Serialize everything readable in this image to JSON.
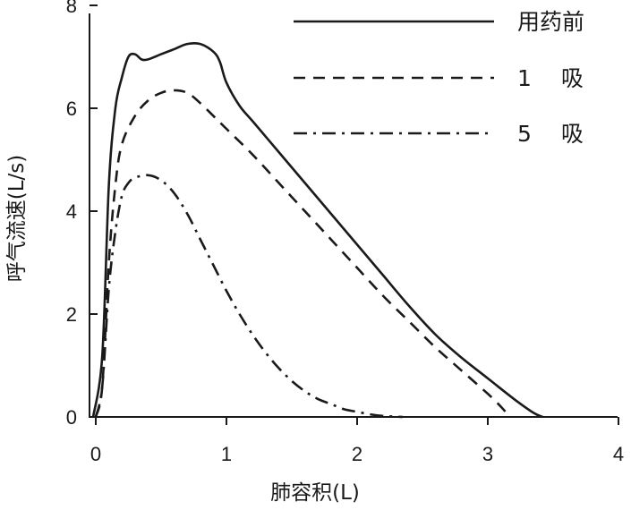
{
  "chart_data": {
    "type": "line",
    "xlabel": "肺容积(L)",
    "ylabel": "呼气流速(L/s)",
    "xlim": [
      0,
      4
    ],
    "ylim": [
      0,
      8
    ],
    "x_ticks": [
      "0",
      "1",
      "2",
      "3",
      "4"
    ],
    "y_ticks": [
      "0",
      "2",
      "4",
      "6",
      "8"
    ],
    "grid": false,
    "legend_position": "top-right",
    "series": [
      {
        "name": "用药前",
        "style": "solid",
        "points": [
          [
            -0.02,
            0
          ],
          [
            0.05,
            1.2
          ],
          [
            0.1,
            4.5
          ],
          [
            0.15,
            6.0
          ],
          [
            0.2,
            6.6
          ],
          [
            0.25,
            7.0
          ],
          [
            0.3,
            7.05
          ],
          [
            0.35,
            6.95
          ],
          [
            0.4,
            6.95
          ],
          [
            0.5,
            7.05
          ],
          [
            0.6,
            7.15
          ],
          [
            0.7,
            7.25
          ],
          [
            0.8,
            7.25
          ],
          [
            0.9,
            7.1
          ],
          [
            0.95,
            6.9
          ],
          [
            1.0,
            6.5
          ],
          [
            1.1,
            6.05
          ],
          [
            1.2,
            5.75
          ],
          [
            1.4,
            5.15
          ],
          [
            1.6,
            4.55
          ],
          [
            1.8,
            3.95
          ],
          [
            2.0,
            3.35
          ],
          [
            2.2,
            2.75
          ],
          [
            2.4,
            2.15
          ],
          [
            2.6,
            1.6
          ],
          [
            2.8,
            1.15
          ],
          [
            3.0,
            0.75
          ],
          [
            3.2,
            0.35
          ],
          [
            3.35,
            0.08
          ],
          [
            3.42,
            0
          ]
        ]
      },
      {
        "name": "1　 吸",
        "style": "dashed",
        "points": [
          [
            0,
            0
          ],
          [
            0.05,
            0.6
          ],
          [
            0.1,
            3.0
          ],
          [
            0.15,
            4.5
          ],
          [
            0.2,
            5.3
          ],
          [
            0.3,
            5.85
          ],
          [
            0.4,
            6.15
          ],
          [
            0.5,
            6.3
          ],
          [
            0.6,
            6.35
          ],
          [
            0.7,
            6.3
          ],
          [
            0.8,
            6.1
          ],
          [
            0.9,
            5.85
          ],
          [
            1.0,
            5.6
          ],
          [
            1.2,
            5.1
          ],
          [
            1.4,
            4.55
          ],
          [
            1.6,
            4.0
          ],
          [
            1.8,
            3.45
          ],
          [
            2.0,
            2.9
          ],
          [
            2.2,
            2.35
          ],
          [
            2.4,
            1.85
          ],
          [
            2.6,
            1.35
          ],
          [
            2.8,
            0.9
          ],
          [
            3.0,
            0.45
          ],
          [
            3.1,
            0.2
          ],
          [
            3.17,
            0
          ]
        ]
      },
      {
        "name": "5　 吸",
        "style": "dashdot",
        "points": [
          [
            0,
            0
          ],
          [
            0.05,
            0.6
          ],
          [
            0.1,
            2.5
          ],
          [
            0.15,
            3.6
          ],
          [
            0.2,
            4.3
          ],
          [
            0.25,
            4.55
          ],
          [
            0.3,
            4.65
          ],
          [
            0.4,
            4.7
          ],
          [
            0.5,
            4.6
          ],
          [
            0.6,
            4.35
          ],
          [
            0.7,
            3.95
          ],
          [
            0.8,
            3.45
          ],
          [
            0.9,
            2.95
          ],
          [
            1.0,
            2.45
          ],
          [
            1.1,
            2.0
          ],
          [
            1.2,
            1.6
          ],
          [
            1.3,
            1.25
          ],
          [
            1.4,
            0.95
          ],
          [
            1.5,
            0.7
          ],
          [
            1.6,
            0.5
          ],
          [
            1.7,
            0.35
          ],
          [
            1.8,
            0.25
          ],
          [
            1.9,
            0.15
          ],
          [
            2.0,
            0.1
          ],
          [
            2.1,
            0.05
          ],
          [
            2.2,
            0.02
          ],
          [
            2.35,
            0
          ]
        ]
      }
    ]
  }
}
